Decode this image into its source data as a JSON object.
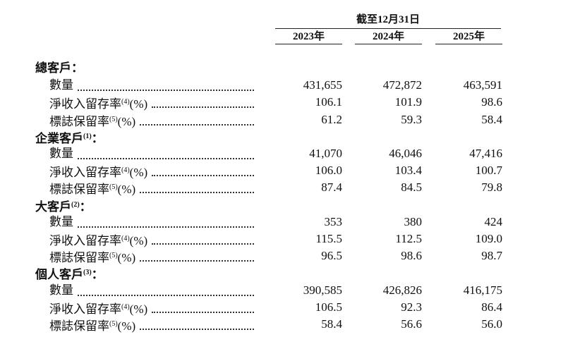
{
  "header": {
    "period": "截至12月31日",
    "columns": [
      "2023年",
      "2024年",
      "2025年"
    ]
  },
  "sections": [
    {
      "title": "總客戶",
      "colon": "：",
      "rows": [
        {
          "label": "數量",
          "values": [
            "431,655",
            "472,872",
            "463,591"
          ]
        },
        {
          "label": "淨收入留存率",
          "note": "(4)",
          "unit": "(%)",
          "values": [
            "106.1",
            "101.9",
            "98.6"
          ]
        },
        {
          "label": "標誌保留率",
          "note": "(5)",
          "unit": "(%)",
          "values": [
            "61.2",
            "59.3",
            "58.4"
          ]
        }
      ]
    },
    {
      "title": "企業客戶",
      "note": "(1)",
      "colon": "：",
      "rows": [
        {
          "label": "數量",
          "values": [
            "41,070",
            "46,046",
            "47,416"
          ]
        },
        {
          "label": "淨收入留存率",
          "note": "(4)",
          "unit": "(%)",
          "values": [
            "106.0",
            "103.4",
            "100.7"
          ]
        },
        {
          "label": "標誌保留率",
          "note": "(5)",
          "unit": "(%)",
          "values": [
            "87.4",
            "84.5",
            "79.8"
          ]
        }
      ]
    },
    {
      "title": "大客戶",
      "note": "(2)",
      "colon": "：",
      "rows": [
        {
          "label": "數量",
          "values": [
            "353",
            "380",
            "424"
          ]
        },
        {
          "label": "淨收入留存率",
          "note": "(4)",
          "unit": "(%)",
          "values": [
            "115.5",
            "112.5",
            "109.0"
          ]
        },
        {
          "label": "標誌保留率",
          "note": "(5)",
          "unit": "(%)",
          "values": [
            "96.5",
            "98.6",
            "98.7"
          ]
        }
      ]
    },
    {
      "title": "個人客戶",
      "note": "(3)",
      "colon": "：",
      "rows": [
        {
          "label": "數量",
          "values": [
            "390,585",
            "426,826",
            "416,175"
          ]
        },
        {
          "label": "淨收入留存率",
          "note": "(4)",
          "unit": "(%)",
          "values": [
            "106.5",
            "92.3",
            "86.4"
          ]
        },
        {
          "label": "標誌保留率",
          "note": "(5)",
          "unit": "(%)",
          "values": [
            "58.4",
            "56.6",
            "56.0"
          ]
        }
      ]
    }
  ]
}
